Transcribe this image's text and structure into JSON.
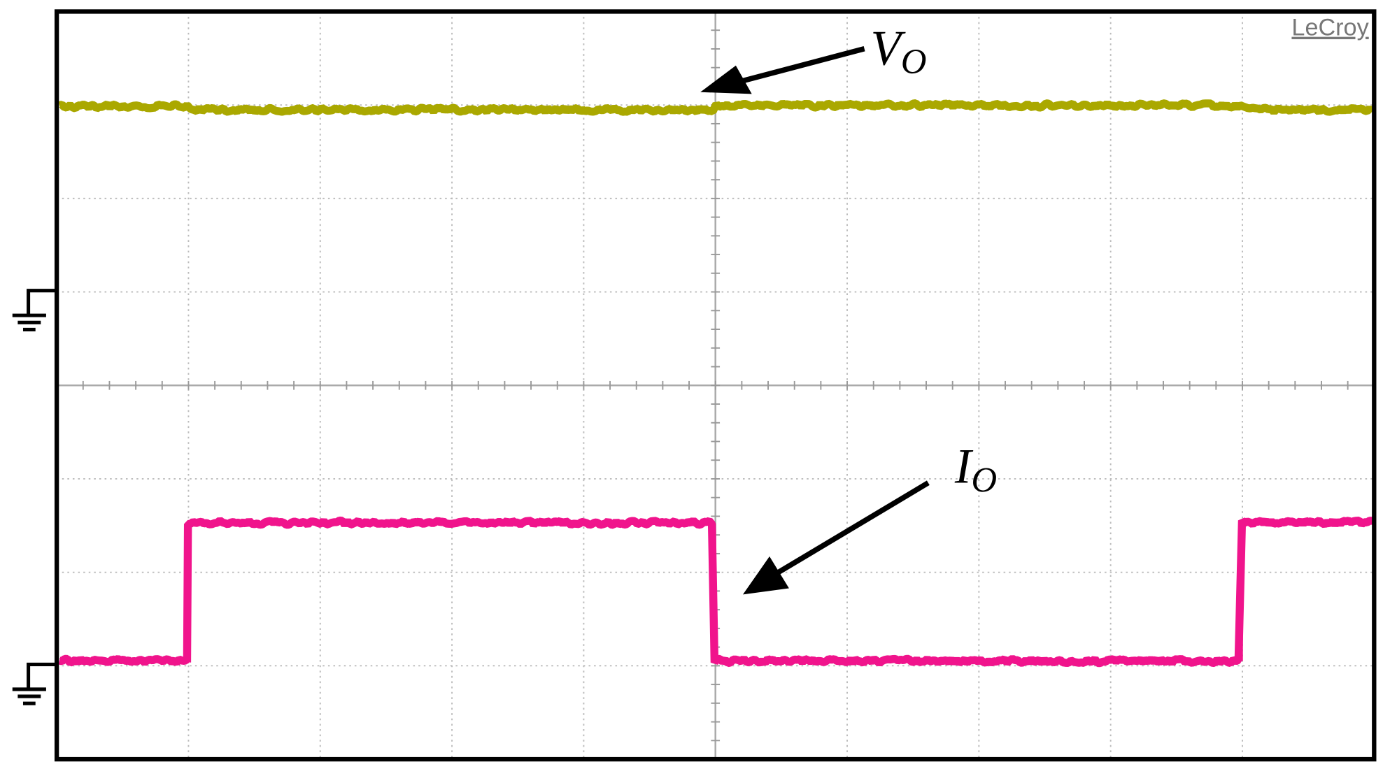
{
  "brand": "LeCroy",
  "labels": [
    {
      "main": "V",
      "sub": "O"
    },
    {
      "main": "I",
      "sub": "O"
    }
  ]
}
